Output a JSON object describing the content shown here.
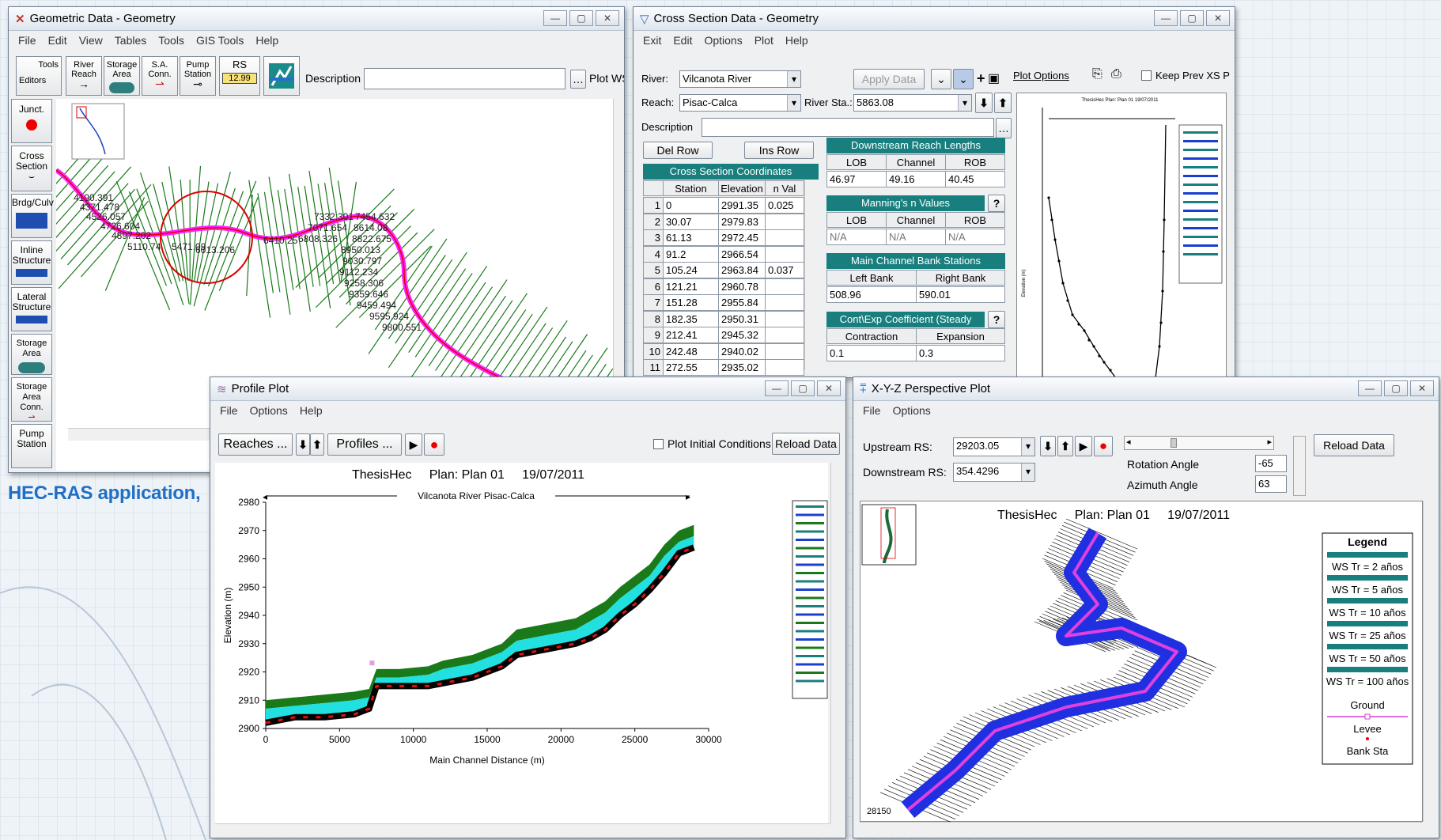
{
  "caption": "HEC-RAS application,",
  "geometric": {
    "title": "Geometric Data - Geometry",
    "menu": [
      "File",
      "Edit",
      "View",
      "Tables",
      "Tools",
      "GIS Tools",
      "Help"
    ],
    "tools_label": "Tools",
    "editors_label": "Editors",
    "tool_river_reach": "River Reach",
    "tool_storage_area": "Storage Area",
    "tool_sa_conn": "S.A. Conn.",
    "tool_pump_station": "Pump Station",
    "tool_rs": "RS",
    "tool_rs_value": "12.99",
    "description_label": "Description :",
    "plot_ws": "Plot WS e",
    "side": [
      "Junct.",
      "Cross Section",
      "Brdg/Culv",
      "Inline Structure",
      "Lateral Structure",
      "Storage Area",
      "Storage Area Conn.",
      "Pump Station"
    ],
    "map_labels": [
      "4190.391",
      "4371.478",
      "4526.057",
      "4726.604",
      "4897.202",
      "5110.74",
      "5471.09",
      "6013.206",
      "6410.25",
      "6808.326",
      "7071.654",
      "7332.301",
      "7454.632",
      "8614.08",
      "8822.675",
      "8950.013",
      "9030.797",
      "9112.234",
      "9258.306",
      "9359.646",
      "9459.494",
      "9595.924",
      "9800.551"
    ]
  },
  "cross_section": {
    "title": "Cross Section Data - Geometry",
    "menu": [
      "Exit",
      "Edit",
      "Options",
      "Plot",
      "Help"
    ],
    "river_label": "River:",
    "river_value": "Vilcanota River",
    "apply_data": "Apply Data",
    "plot_options": "Plot Options",
    "keep_prev": "Keep Prev XS P",
    "reach_label": "Reach:",
    "reach_value": "Pisac-Calca",
    "river_sta_label": "River Sta.:",
    "river_sta_value": "5863.08",
    "description_label": "Description",
    "del_row": "Del Row",
    "ins_row": "Ins Row",
    "coords_header": "Cross Section Coordinates",
    "col_station": "Station",
    "col_elevation": "Elevation",
    "col_nval": "n Val",
    "rows": [
      {
        "n": "1",
        "station": "0",
        "elev": "2991.35",
        "nval": "0.025"
      },
      {
        "n": "2",
        "station": "30.07",
        "elev": "2979.83",
        "nval": ""
      },
      {
        "n": "3",
        "station": "61.13",
        "elev": "2972.45",
        "nval": ""
      },
      {
        "n": "4",
        "station": "91.2",
        "elev": "2966.54",
        "nval": ""
      },
      {
        "n": "5",
        "station": "105.24",
        "elev": "2963.84",
        "nval": "0.037"
      },
      {
        "n": "6",
        "station": "121.21",
        "elev": "2960.78",
        "nval": ""
      },
      {
        "n": "7",
        "station": "151.28",
        "elev": "2955.84",
        "nval": ""
      },
      {
        "n": "8",
        "station": "182.35",
        "elev": "2950.31",
        "nval": ""
      },
      {
        "n": "9",
        "station": "212.41",
        "elev": "2945.32",
        "nval": ""
      },
      {
        "n": "10",
        "station": "242.48",
        "elev": "2940.02",
        "nval": ""
      },
      {
        "n": "11",
        "station": "272.55",
        "elev": "2935.02",
        "nval": ""
      }
    ],
    "downstream_header": "Downstream Reach Lengths",
    "lob": "LOB",
    "channel": "Channel",
    "rob": "ROB",
    "ds_lob": "46.97",
    "ds_channel": "49.16",
    "ds_rob": "40.45",
    "mannings_header": "Manning's n Values",
    "mn_lob": "N/A",
    "mn_channel": "N/A",
    "mn_rob": "N/A",
    "bank_header": "Main Channel Bank Stations",
    "left_bank": "Left Bank",
    "right_bank": "Right Bank",
    "left_bank_val": "508.96",
    "right_bank_val": "590.01",
    "cont_header": "Cont\\Exp Coefficient (Steady Flow)",
    "contraction": "Contraction",
    "expansion": "Expansion",
    "contraction_val": "0.1",
    "expansion_val": "0.3",
    "help_q": "?"
  },
  "profile": {
    "title": "Profile Plot",
    "menu": [
      "File",
      "Options",
      "Help"
    ],
    "reaches_btn": "Reaches ...",
    "profiles_btn": "Profiles ...",
    "plot_initial": "Plot Initial Conditions",
    "reload": "Reload Data",
    "plot_title": "ThesisHec     Plan: Plan 01     19/07/2011",
    "reach_label": "Vilcanota River Pisac-Calca"
  },
  "perspective": {
    "title": "X-Y-Z Perspective Plot",
    "menu": [
      "File",
      "Options"
    ],
    "upstream_label": "Upstream RS:",
    "upstream_val": "29203.05",
    "downstream_label": "Downstream RS:",
    "downstream_val": "354.4296",
    "reload": "Reload Data",
    "rotation_label": "Rotation Angle",
    "rotation_val": "-65",
    "azimuth_label": "Azimuth Angle",
    "azimuth_val": "63",
    "plot_title": "ThesisHec     Plan: Plan 01     19/07/2011",
    "legend_title": "Legend",
    "legend": [
      "WS Tr = 2 años",
      "WS Tr = 5 años",
      "WS Tr = 10 años",
      "WS Tr = 25 años",
      "WS Tr = 50 años",
      "WS Tr = 100 años",
      "Ground",
      "Levee",
      "Bank Sta"
    ],
    "map_label": "28150"
  },
  "chart_data": {
    "type": "area",
    "title": "ThesisHec     Plan: Plan 01     19/07/2011",
    "xlabel": "Main Channel Distance (m)",
    "ylabel": "Elevation (m)",
    "xlim": [
      0,
      30000
    ],
    "ylim": [
      2900,
      2980
    ],
    "xticks": [
      0,
      5000,
      10000,
      15000,
      20000,
      25000,
      30000
    ],
    "yticks": [
      2900,
      2910,
      2920,
      2930,
      2940,
      2950,
      2960,
      2970,
      2980
    ],
    "ground": {
      "x": [
        0,
        2000,
        4000,
        6000,
        7000,
        7500,
        9000,
        11000,
        12000,
        14000,
        16000,
        17000,
        19000,
        21000,
        22000,
        23000,
        24000,
        25000,
        26000,
        27000,
        28000,
        29000
      ],
      "y": [
        2902,
        2904,
        2904,
        2905,
        2907,
        2915,
        2915,
        2915,
        2916,
        2918,
        2922,
        2926,
        2928,
        2930,
        2932,
        2935,
        2940,
        2944,
        2949,
        2955,
        2962,
        2964
      ]
    },
    "ws100": {
      "x": [
        0,
        2000,
        4000,
        6000,
        7000,
        7500,
        9000,
        11000,
        12000,
        14000,
        16000,
        17000,
        19000,
        21000,
        22000,
        23000,
        24000,
        25000,
        26000,
        27000,
        28000,
        29000
      ],
      "y": [
        2910,
        2911,
        2912,
        2913,
        2914,
        2921,
        2921,
        2922,
        2924,
        2926,
        2930,
        2935,
        2937,
        2939,
        2942,
        2945,
        2950,
        2954,
        2958,
        2965,
        2970,
        2972
      ]
    },
    "ws2": {
      "x": [
        0,
        2000,
        4000,
        6000,
        7000,
        7500,
        9000,
        11000,
        12000,
        14000,
        16000,
        17000,
        19000,
        21000,
        22000,
        23000,
        24000,
        25000,
        26000,
        27000,
        28000,
        29000
      ],
      "y": [
        2907,
        2908,
        2909,
        2910,
        2911,
        2918,
        2918,
        2919,
        2921,
        2923,
        2927,
        2931,
        2933,
        2935,
        2938,
        2941,
        2946,
        2950,
        2954,
        2961,
        2966,
        2968
      ]
    }
  },
  "cs_chart": {
    "title": "ThesisHec     Plan: Plan 01     19/07/2011",
    "ylabel": "Elevation (m)"
  }
}
